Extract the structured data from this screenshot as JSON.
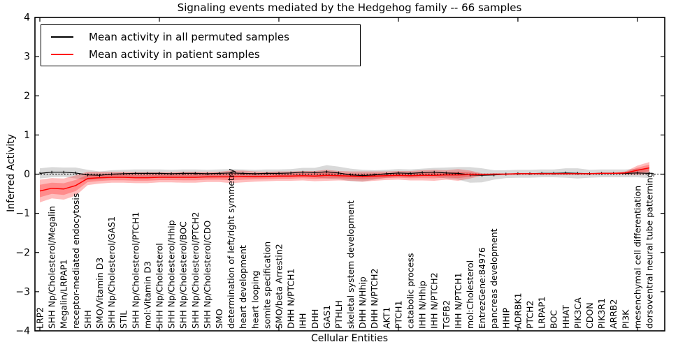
{
  "chart_data": {
    "type": "line",
    "title": "Signaling events mediated by the Hedgehog family -- 66 samples",
    "xlabel": "Cellular Entities",
    "ylabel": "Inferred Activity",
    "ylim": [
      -4,
      4
    ],
    "y_ticks": [
      4,
      3,
      2,
      1,
      0,
      -1,
      -2,
      -3,
      -4
    ],
    "y_tick_labels": [
      "4",
      "3",
      "2",
      "1",
      "0",
      "−1",
      "−2",
      "−3",
      "−4"
    ],
    "x_major_tick_every": 10,
    "grid": false,
    "legend_position": "upper-left",
    "zero_line_style": "dotted",
    "categories": [
      "LRP2",
      "SHH Np/Cholesterol/Megalin",
      "Megalin/LRPAP1",
      "receptor-mediated endocytosis",
      "SHH",
      "SMO/Vitamin D3",
      "SHH Np/Cholesterol/GAS1",
      "STIL",
      "SHH Np/Cholesterol/PTCH1",
      "mol:Vitamin D3",
      "SHH Np/Cholesterol",
      "SHH Np/Cholesterol/Hhip",
      "SHH Np/Cholesterol/BOC",
      "SHH Np/Cholesterol/PTCH2",
      "SHH Np/Cholesterol/CDO",
      "SMO",
      "determination of left/right symmetry",
      "heart development",
      "heart looping",
      "somite specification",
      "SMO/beta Arrestin2",
      "DHH N/PTCH1",
      "IHH",
      "DHH",
      "GAS1",
      "PTHLH",
      "skeletal system development",
      "DHH N/Hhip",
      "DHH N/PTCH2",
      "AKT1",
      "PTCH1",
      "catabolic process",
      "IHH N/Hhip",
      "IHH N/PTCH2",
      "TGFB2",
      "IHH N/PTCH1",
      "mol:Cholesterol",
      "EntrezGene:84976",
      "pancreas development",
      "HHIP",
      "ADRBK1",
      "PTCH2",
      "LRPAP1",
      "BOC",
      "HHAT",
      "PIK3CA",
      "CDON",
      "PIK3R1",
      "ARRB2",
      "PI3K",
      "mesenchymal cell differentiation",
      "dorsoventral neural tube patterning"
    ],
    "series": [
      {
        "name": "Mean activity in all permuted samples",
        "color": "#000000",
        "band_color": "rgba(130,130,130,0.30)",
        "inner_band_scale": 1,
        "values": [
          0.02,
          0.05,
          0.05,
          0.03,
          -0.02,
          -0.03,
          0.0,
          0.01,
          0.02,
          0.02,
          0.02,
          0.01,
          0.02,
          0.02,
          0.01,
          0.02,
          0.03,
          0.02,
          0.01,
          0.02,
          0.02,
          0.03,
          0.05,
          0.04,
          0.06,
          0.03,
          -0.02,
          -0.04,
          -0.02,
          0.01,
          0.03,
          0.02,
          0.04,
          0.05,
          0.03,
          0.02,
          -0.02,
          -0.03,
          -0.02,
          0.0,
          0.01,
          0.01,
          0.02,
          0.02,
          0.03,
          0.02,
          0.01,
          0.02,
          0.02,
          0.02,
          0.03,
          0.02
        ],
        "band_halfwidth": [
          0.13,
          0.13,
          0.12,
          0.14,
          0.13,
          0.1,
          0.1,
          0.1,
          0.1,
          0.1,
          0.1,
          0.1,
          0.1,
          0.1,
          0.1,
          0.1,
          0.1,
          0.1,
          0.1,
          0.1,
          0.1,
          0.1,
          0.11,
          0.12,
          0.17,
          0.16,
          0.16,
          0.15,
          0.12,
          0.1,
          0.1,
          0.1,
          0.1,
          0.11,
          0.14,
          0.16,
          0.2,
          0.18,
          0.12,
          0.1,
          0.1,
          0.1,
          0.1,
          0.1,
          0.12,
          0.13,
          0.1,
          0.1,
          0.1,
          0.1,
          0.11,
          0.12
        ]
      },
      {
        "name": "Mean activity in patient samples",
        "color": "#ff0000",
        "band_color": "rgba(255,0,0,0.26)",
        "inner_band_scale": 0.55,
        "values": [
          -0.43,
          -0.36,
          -0.38,
          -0.29,
          -0.11,
          -0.09,
          -0.08,
          -0.08,
          -0.09,
          -0.09,
          -0.08,
          -0.08,
          -0.08,
          -0.08,
          -0.07,
          -0.07,
          -0.07,
          -0.06,
          -0.06,
          -0.06,
          -0.05,
          -0.05,
          -0.04,
          -0.05,
          -0.03,
          -0.04,
          -0.05,
          -0.06,
          -0.05,
          -0.04,
          -0.03,
          -0.04,
          -0.03,
          -0.03,
          -0.02,
          -0.02,
          -0.01,
          -0.01,
          0.0,
          0.0,
          0.01,
          0.01,
          0.01,
          0.01,
          0.01,
          0.01,
          0.01,
          0.02,
          0.02,
          0.03,
          0.1,
          0.16
        ],
        "band_halfwidth": [
          0.29,
          0.26,
          0.27,
          0.26,
          0.17,
          0.15,
          0.14,
          0.14,
          0.14,
          0.14,
          0.13,
          0.13,
          0.14,
          0.14,
          0.13,
          0.13,
          0.16,
          0.15,
          0.13,
          0.12,
          0.12,
          0.12,
          0.12,
          0.13,
          0.14,
          0.12,
          0.12,
          0.13,
          0.12,
          0.11,
          0.11,
          0.12,
          0.13,
          0.14,
          0.12,
          0.15,
          0.1,
          0.03,
          0.02,
          0.02,
          0.02,
          0.02,
          0.02,
          0.02,
          0.02,
          0.02,
          0.02,
          0.02,
          0.02,
          0.04,
          0.12,
          0.15
        ]
      }
    ]
  }
}
